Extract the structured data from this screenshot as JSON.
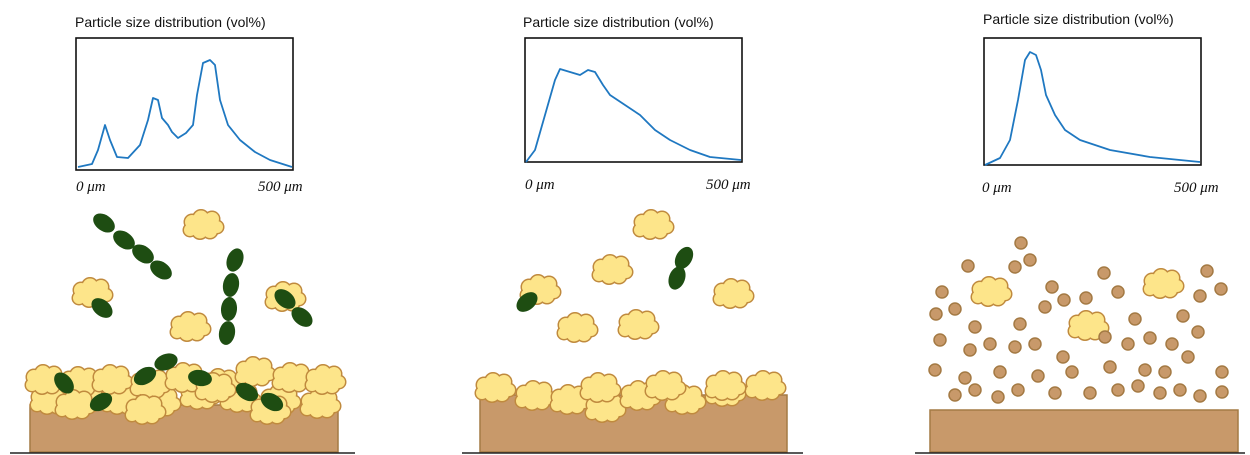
{
  "panels": [
    {
      "title": "Particle size distribution (vol%)",
      "x_start": "0 μm",
      "x_end": "500 μm"
    },
    {
      "title": "Particle size distribution (vol%)",
      "x_start": "0 μm",
      "x_end": "500 μm"
    },
    {
      "title": "Particle size distribution (vol%)",
      "x_start": "0 μm",
      "x_end": "500 μm"
    }
  ]
}
